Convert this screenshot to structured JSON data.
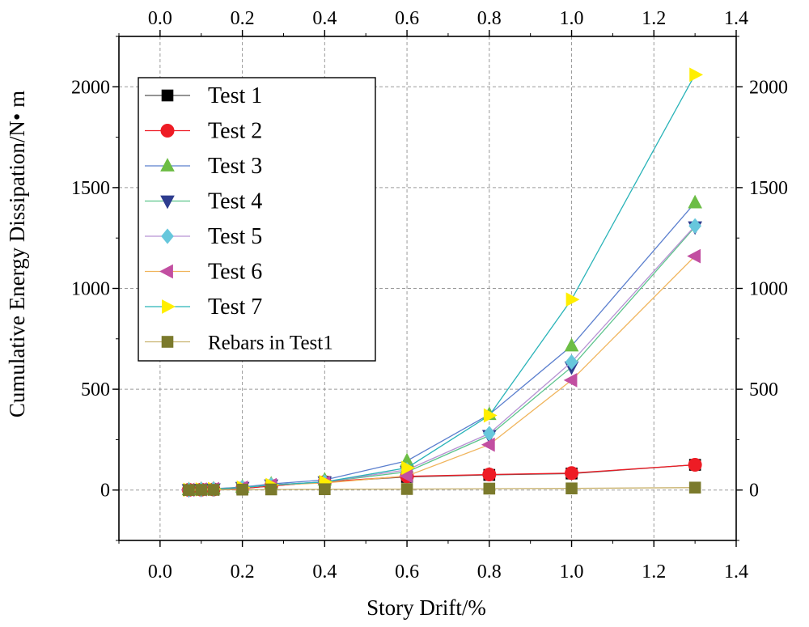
{
  "chart_data": {
    "type": "line",
    "title": "",
    "xlabel": "Story Drift/%",
    "ylabel": "Cumulative Energy Dissipation/N• m",
    "xlim": [
      -0.1,
      1.4
    ],
    "ylim": [
      -250,
      2250
    ],
    "x_ticks": [
      0.0,
      0.2,
      0.4,
      0.6,
      0.8,
      1.0,
      1.2,
      1.4
    ],
    "x_tick_labels": [
      "0.0",
      "0.2",
      "0.4",
      "0.6",
      "0.8",
      "1.0",
      "1.2",
      "1.4"
    ],
    "y_ticks": [
      0,
      500,
      1000,
      1500,
      2000
    ],
    "y_tick_labels": [
      "0",
      "500",
      "1000",
      "1500",
      "2000"
    ],
    "grid": true,
    "legend_position": "top-left",
    "series": [
      {
        "name": "Test 1",
        "marker": "square",
        "color": "#000000",
        "line_color": "#555555",
        "x": [
          0.07,
          0.1,
          0.13,
          0.2,
          0.27,
          0.4,
          0.6,
          0.8,
          1.0,
          1.3
        ],
        "y": [
          1,
          2,
          3,
          8,
          20,
          40,
          65,
          75,
          82,
          125
        ]
      },
      {
        "name": "Test 2",
        "marker": "circle",
        "color": "#ee1c25",
        "line_color": "#ee1c25",
        "x": [
          0.07,
          0.1,
          0.13,
          0.2,
          0.27,
          0.4,
          0.6,
          0.8,
          1.0,
          1.3
        ],
        "y": [
          1,
          2,
          3,
          8,
          20,
          40,
          68,
          77,
          84,
          125
        ]
      },
      {
        "name": "Test 3",
        "marker": "triangle-up",
        "color": "#6cbd45",
        "line_color": "#5b7fce",
        "x": [
          0.07,
          0.1,
          0.13,
          0.2,
          0.27,
          0.4,
          0.6,
          0.8,
          1.0,
          1.3
        ],
        "y": [
          2,
          4,
          6,
          15,
          30,
          50,
          145,
          375,
          715,
          1425
        ]
      },
      {
        "name": "Test 4",
        "marker": "triangle-down",
        "color": "#2e3d8f",
        "line_color": "#5cc48c",
        "x": [
          0.07,
          0.1,
          0.13,
          0.2,
          0.27,
          0.4,
          0.6,
          0.8,
          1.0,
          1.3
        ],
        "y": [
          1,
          3,
          5,
          12,
          25,
          40,
          90,
          270,
          610,
          1305
        ]
      },
      {
        "name": "Test 5",
        "marker": "diamond",
        "color": "#67c7dc",
        "line_color": "#b793d3",
        "x": [
          0.07,
          0.1,
          0.13,
          0.2,
          0.27,
          0.4,
          0.6,
          0.8,
          1.0,
          1.3
        ],
        "y": [
          1,
          3,
          5,
          12,
          25,
          40,
          100,
          280,
          635,
          1310
        ]
      },
      {
        "name": "Test 6",
        "marker": "triangle-left",
        "color": "#c24fa1",
        "line_color": "#f0b45b",
        "x": [
          0.07,
          0.1,
          0.13,
          0.2,
          0.27,
          0.4,
          0.6,
          0.8,
          1.0,
          1.3
        ],
        "y": [
          1,
          3,
          5,
          12,
          25,
          35,
          70,
          225,
          545,
          1160
        ]
      },
      {
        "name": "Test 7",
        "marker": "triangle-right",
        "color": "#ffee00",
        "line_color": "#29b3b8",
        "x": [
          0.07,
          0.1,
          0.13,
          0.2,
          0.27,
          0.4,
          0.6,
          0.8,
          1.0,
          1.3
        ],
        "y": [
          1,
          3,
          5,
          12,
          25,
          40,
          110,
          370,
          945,
          2060
        ]
      },
      {
        "name": "Rebars in Test1",
        "marker": "square",
        "color": "#7b7a2c",
        "line_color": "#c9b36f",
        "x": [
          0.07,
          0.1,
          0.13,
          0.2,
          0.27,
          0.4,
          0.6,
          0.8,
          1.0,
          1.3
        ],
        "y": [
          0,
          1,
          1,
          2,
          3,
          4,
          5,
          7,
          8,
          12
        ]
      }
    ]
  }
}
